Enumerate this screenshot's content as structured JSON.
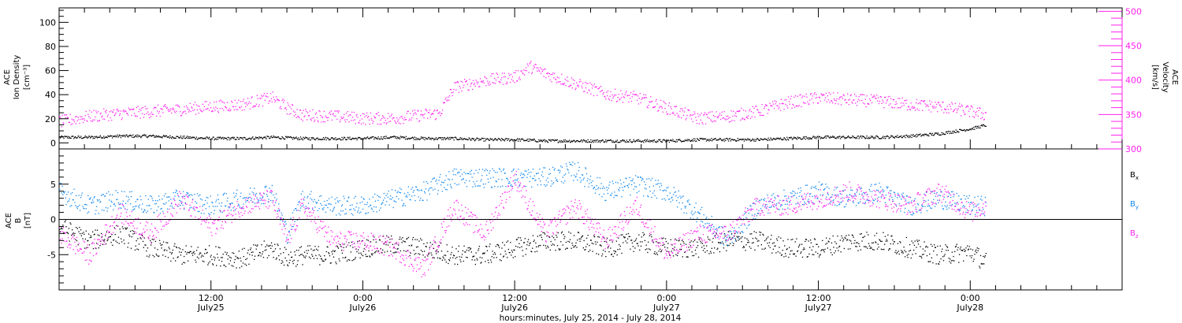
{
  "colors": {
    "black": "#000000",
    "magenta": "#ff22ee",
    "blue": "#1188ee"
  },
  "x_axis": {
    "caption": "hours:minutes, July 25, 2014 - July 28, 2014",
    "ticks": [
      {
        "t": 0.5,
        "time": "12:00",
        "date": "July25"
      },
      {
        "t": 1.0,
        "time": "0:00",
        "date": "July26"
      },
      {
        "t": 1.5,
        "time": "12:00",
        "date": "July26"
      },
      {
        "t": 2.0,
        "time": "0:00",
        "date": "July27"
      },
      {
        "t": 2.5,
        "time": "12:00",
        "date": "July27"
      },
      {
        "t": 3.0,
        "time": "0:00",
        "date": "July28"
      }
    ],
    "range_days": [
      0,
      3.5
    ],
    "minor_step_days": 0.0833333
  },
  "chart_data": [
    {
      "type": "scatter",
      "panel": "top",
      "ylabel_lines": [
        "ACE",
        "Ion Density",
        "[cm⁻³]"
      ],
      "y2label_lines": [
        "ACE",
        "Velocity",
        "[km/s]"
      ],
      "ylim": [
        -5,
        112
      ],
      "y2lim": [
        300,
        505
      ],
      "yticks": [
        "0",
        "20",
        "40",
        "60",
        "80",
        "100"
      ],
      "y2ticks": [
        "300",
        "350",
        "400",
        "450",
        "500"
      ],
      "series": [
        {
          "name": "Ion Density",
          "color": "black",
          "axis": "left",
          "x_days": [
            0.0,
            0.1,
            0.2,
            0.3,
            0.4,
            0.5,
            0.6,
            0.7,
            0.8,
            0.9,
            1.0,
            1.1,
            1.2,
            1.3,
            1.4,
            1.5,
            1.6,
            1.7,
            1.8,
            1.9,
            2.0,
            2.1,
            2.2,
            2.3,
            2.4,
            2.5,
            2.6,
            2.7,
            2.8,
            2.9,
            3.0,
            3.05
          ],
          "y": [
            5,
            5,
            6,
            6,
            5,
            4,
            4,
            5,
            4,
            4,
            4,
            5,
            4,
            4,
            3,
            3,
            2,
            2,
            2,
            2,
            2,
            3,
            3,
            3,
            4,
            5,
            5,
            5,
            6,
            8,
            12,
            15
          ]
        },
        {
          "name": "Velocity",
          "color": "magenta",
          "axis": "right",
          "x_days": [
            0.0,
            0.1,
            0.2,
            0.3,
            0.4,
            0.5,
            0.6,
            0.7,
            0.75,
            0.8,
            0.9,
            1.0,
            1.1,
            1.2,
            1.25,
            1.3,
            1.4,
            1.5,
            1.55,
            1.6,
            1.7,
            1.75,
            1.8,
            1.9,
            2.0,
            2.1,
            2.2,
            2.3,
            2.4,
            2.5,
            2.6,
            2.7,
            2.8,
            2.9,
            3.0,
            3.05
          ],
          "y": [
            340,
            348,
            352,
            355,
            358,
            362,
            365,
            375,
            360,
            350,
            348,
            345,
            345,
            350,
            352,
            390,
            400,
            405,
            420,
            410,
            395,
            388,
            380,
            375,
            360,
            345,
            348,
            355,
            368,
            375,
            372,
            370,
            365,
            362,
            355,
            350
          ]
        }
      ]
    },
    {
      "type": "scatter",
      "panel": "bottom",
      "ylabel_lines": [
        "ACE",
        "B",
        "[nT]"
      ],
      "ylim": [
        -10,
        10
      ],
      "yticks": [
        "-5",
        "0",
        "5"
      ],
      "series": [
        {
          "name": "Bx",
          "color": "black",
          "x_days": [
            0.0,
            0.1,
            0.2,
            0.3,
            0.4,
            0.5,
            0.6,
            0.7,
            0.75,
            0.8,
            0.9,
            1.0,
            1.1,
            1.2,
            1.3,
            1.4,
            1.5,
            1.6,
            1.7,
            1.8,
            1.9,
            2.0,
            2.1,
            2.2,
            2.3,
            2.4,
            2.5,
            2.6,
            2.7,
            2.8,
            2.9,
            3.0,
            3.05
          ],
          "y": [
            -1,
            -3,
            -2,
            -4,
            -5,
            -5,
            -5.5,
            -4,
            -5.5,
            -5,
            -5,
            -4,
            -3.5,
            -4,
            -5,
            -5,
            -4,
            -3,
            -3,
            -4,
            -3,
            -4,
            -4,
            -3,
            -3,
            -4,
            -4,
            -3,
            -3,
            -4,
            -5,
            -4.5,
            -6
          ]
        },
        {
          "name": "By",
          "color": "blue",
          "x_days": [
            0.0,
            0.1,
            0.2,
            0.3,
            0.4,
            0.5,
            0.6,
            0.7,
            0.75,
            0.8,
            0.9,
            1.0,
            1.1,
            1.2,
            1.3,
            1.4,
            1.5,
            1.6,
            1.7,
            1.8,
            1.9,
            2.0,
            2.1,
            2.2,
            2.3,
            2.4,
            2.5,
            2.6,
            2.7,
            2.8,
            2.9,
            3.0,
            3.05
          ],
          "y": [
            4,
            2,
            3,
            2,
            3,
            2,
            3,
            4,
            -2,
            3,
            2,
            2,
            3,
            4,
            6,
            6,
            6,
            6,
            7,
            4,
            5,
            4,
            1,
            -3,
            2,
            3,
            4,
            3,
            4,
            2,
            3,
            2,
            2
          ]
        },
        {
          "name": "Bz",
          "color": "magenta",
          "x_days": [
            0.0,
            0.1,
            0.2,
            0.3,
            0.4,
            0.5,
            0.6,
            0.7,
            0.75,
            0.8,
            0.9,
            1.0,
            1.1,
            1.2,
            1.3,
            1.4,
            1.5,
            1.6,
            1.7,
            1.8,
            1.9,
            2.0,
            2.1,
            2.2,
            2.3,
            2.4,
            2.5,
            2.6,
            2.7,
            2.8,
            2.9,
            3.0,
            3.05
          ],
          "y": [
            -2,
            -5,
            1,
            -2,
            3,
            -1,
            2,
            3,
            -3,
            2,
            -3,
            -3,
            -4,
            -7,
            2,
            -2,
            6,
            -2,
            2,
            -3,
            2,
            -5,
            -2,
            -2,
            2,
            2,
            3,
            4,
            3,
            2,
            4,
            1,
            2
          ]
        }
      ],
      "legend_labels": [
        {
          "base": "B",
          "sub": "x",
          "color": "black"
        },
        {
          "base": "B",
          "sub": "y",
          "color": "blue"
        },
        {
          "base": "B",
          "sub": "z",
          "color": "magenta"
        }
      ]
    }
  ]
}
